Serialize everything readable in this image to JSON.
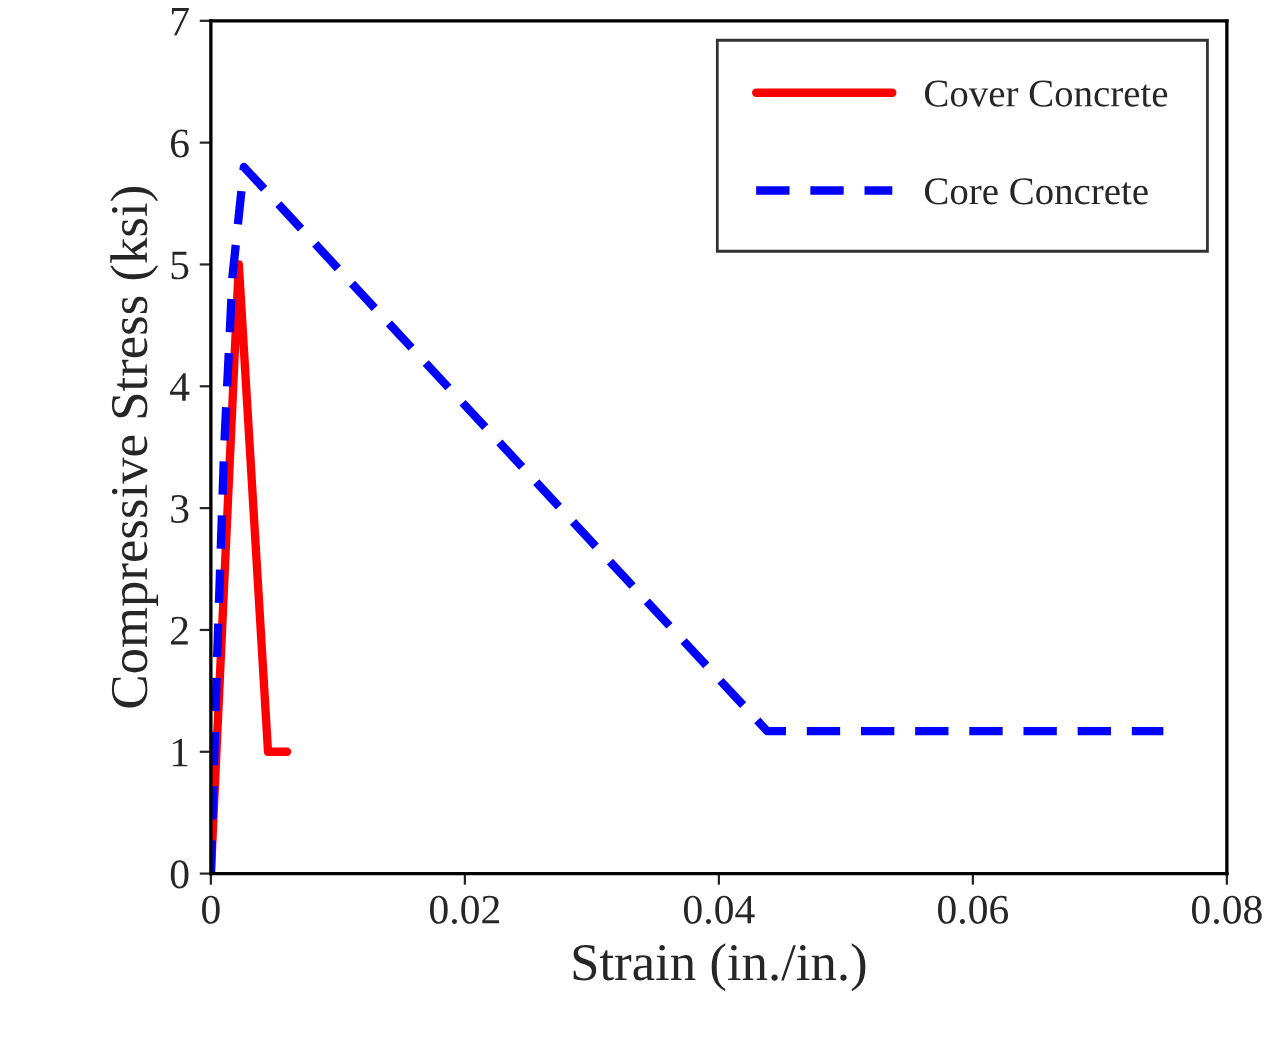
{
  "chart_data": {
    "type": "line",
    "xlabel": "Strain (in./in.)",
    "ylabel": "Compressive Stress (ksi)",
    "xlim": [
      0,
      0.08
    ],
    "xticks": [
      {
        "value": 0,
        "label": "0"
      },
      0.02,
      0.04,
      0.06,
      0.08
    ],
    "ylim": [
      0,
      7
    ],
    "yticks": [
      0,
      1,
      2,
      3,
      4,
      5,
      6,
      7
    ],
    "grid": false,
    "legend": "top right",
    "series": [
      {
        "name": "Cover Concrete",
        "color": "#ff0000",
        "line_style": "solid",
        "x": [
          0,
          0.0022,
          0.0045,
          0.006
        ],
        "values": [
          0,
          5.0,
          1.0,
          1.0
        ]
      },
      {
        "name": "Core Concrete",
        "color": "#0000ff",
        "line_style": "dashed",
        "x": [
          0,
          0.0005,
          0.00105,
          0.0017,
          0.0026,
          0.0438,
          0.075
        ],
        "values": [
          0,
          1.8,
          3.5,
          4.9,
          5.8,
          1.17,
          1.17
        ]
      }
    ]
  }
}
